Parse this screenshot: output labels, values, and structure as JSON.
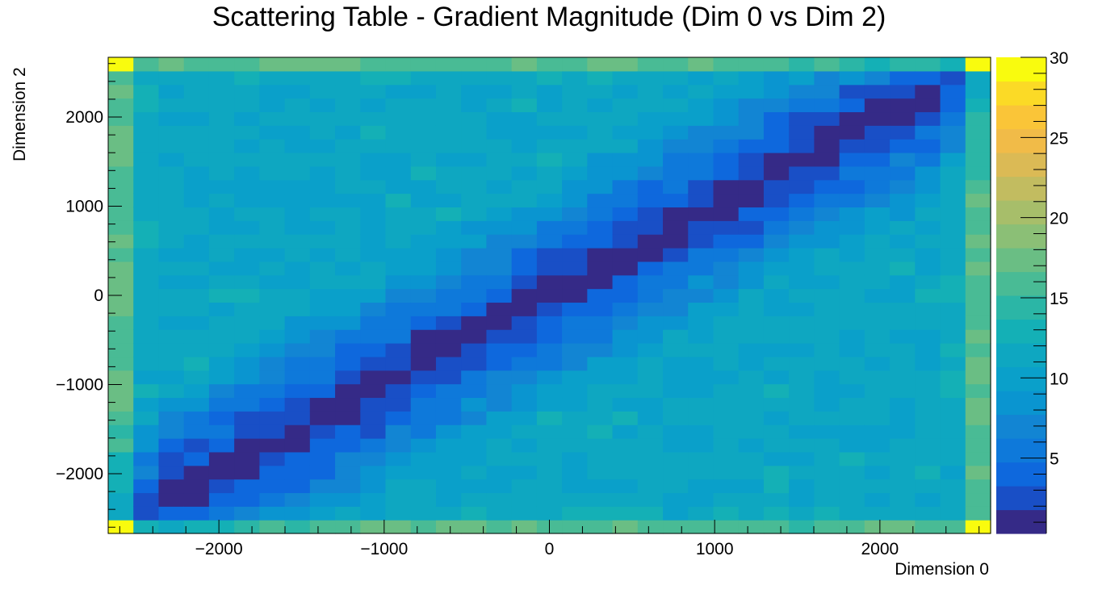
{
  "chart_data": {
    "type": "heatmap",
    "title": "Scattering Table - Gradient Magnitude (Dim 0 vs Dim 2)",
    "xlabel": "Dimension 0",
    "ylabel": "Dimension 2",
    "xlim": [
      -2670,
      2670
    ],
    "ylim": [
      -2670,
      2670
    ],
    "x_ticks": [
      -2000,
      -1000,
      0,
      1000,
      2000
    ],
    "x_tick_labels": [
      "−2000",
      "−1000",
      "0",
      "1000",
      "2000"
    ],
    "y_ticks": [
      -2000,
      -1000,
      0,
      1000,
      2000
    ],
    "y_tick_labels": [
      "−2000",
      "−1000",
      "0",
      "1000",
      "2000"
    ],
    "nbins_x": 35,
    "nbins_y": 35,
    "colorbar": {
      "range": [
        0.3,
        30
      ],
      "ticks": [
        5,
        10,
        15,
        20,
        25,
        30
      ],
      "tick_labels": [
        "5",
        "10",
        "15",
        "20",
        "25",
        "30"
      ],
      "levels": 20,
      "palette": [
        "#352a87",
        "#0f5cdd",
        "#0d75dc",
        "#1286d3",
        "#079ccf",
        "#0da5c3",
        "#15b1b4",
        "#38b99e",
        "#65be86",
        "#92bf73",
        "#b7bd64",
        "#d9ba56",
        "#f8bb44",
        "#fcce2e",
        "#f9fb0e"
      ]
    },
    "description_model": {
      "diagonal_min_value": 0.5,
      "edge_value": 20,
      "corner_value": 30,
      "mid_value": 11
    }
  }
}
